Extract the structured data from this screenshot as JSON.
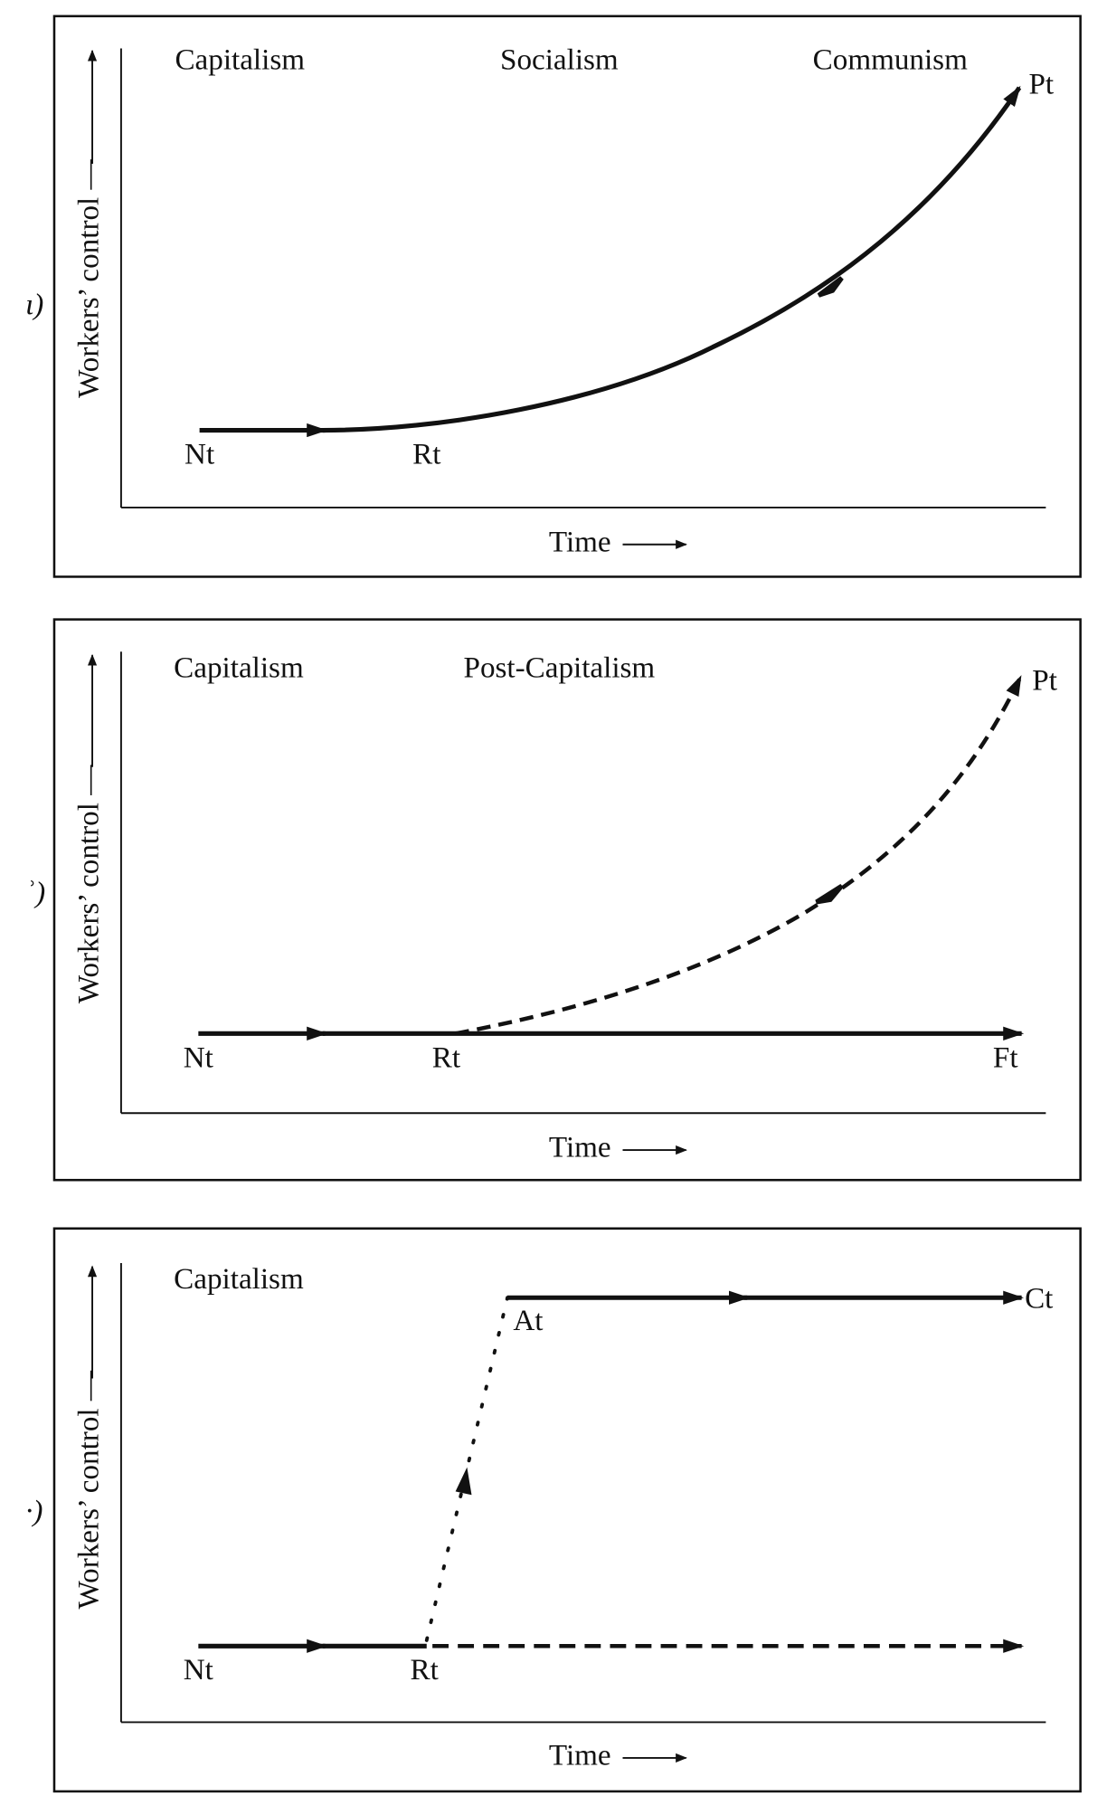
{
  "panels": [
    {
      "marker": "ι)",
      "y_axis_label": "Workers’ control —",
      "x_axis_label": "Time",
      "stages": [
        "Capitalism",
        "Socialism",
        "Communism"
      ],
      "points": {
        "start": "Nt",
        "revolution": "Rt",
        "end": "Pt"
      },
      "paths": [
        {
          "style": "solid",
          "shape": "flat then rising curve",
          "from": "Nt",
          "via": "Rt",
          "to": "Pt"
        }
      ]
    },
    {
      "marker": "ʾ)",
      "y_axis_label": "Workers’ control —",
      "x_axis_label": "Time",
      "stages": [
        "Capitalism",
        "Post-Capitalism"
      ],
      "points": {
        "start": "Nt",
        "revolution": "Rt",
        "flat_end": "Ft",
        "curve_end": "Pt"
      },
      "paths": [
        {
          "style": "solid",
          "shape": "flat",
          "from": "Nt",
          "to": "Ft"
        },
        {
          "style": "dashed",
          "shape": "rising curve",
          "from": "Rt",
          "to": "Pt"
        }
      ]
    },
    {
      "marker": "·)",
      "y_axis_label": "Workers’ control —",
      "x_axis_label": "Time",
      "stages": [
        "Capitalism"
      ],
      "points": {
        "start": "Nt",
        "revolution": "Rt",
        "jump": "At",
        "end": "Ct"
      },
      "paths": [
        {
          "style": "solid",
          "shape": "flat",
          "from": "Nt",
          "to": "Rt"
        },
        {
          "style": "dashed",
          "shape": "flat",
          "from": "Rt"
        },
        {
          "style": "dotted",
          "shape": "steep rise",
          "from": "Rt",
          "to": "At"
        },
        {
          "style": "solid",
          "shape": "flat",
          "from": "At",
          "to": "Ct"
        }
      ]
    }
  ],
  "colors": {
    "ink": "#111111",
    "background": "#ffffff"
  }
}
